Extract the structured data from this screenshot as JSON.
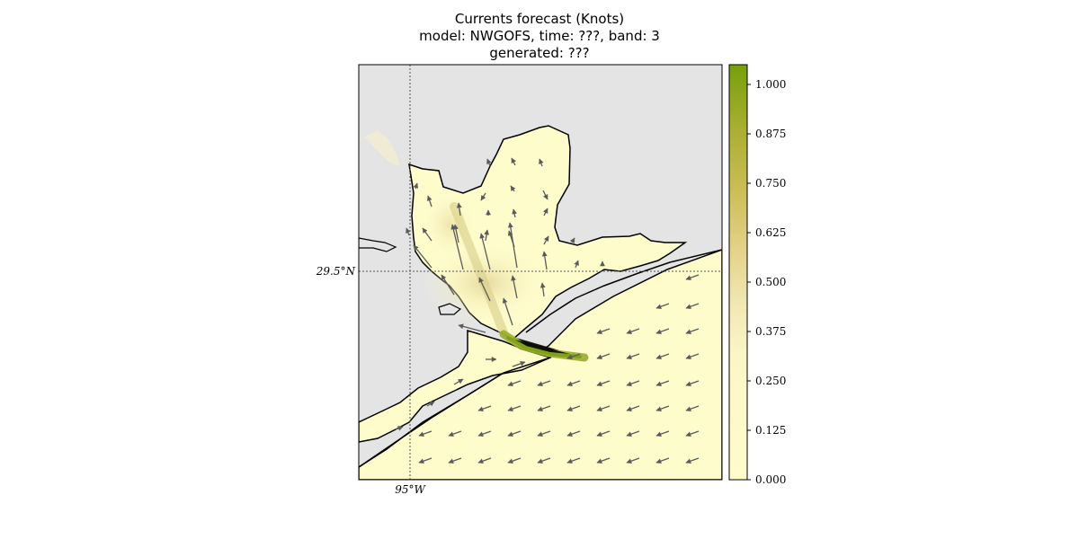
{
  "title": {
    "line1": "Currents forecast (Knots)",
    "line2": "model: NWGOFS, time: ???, band: 3",
    "line3": "generated: ???"
  },
  "map": {
    "lat_label": "29.5°N",
    "lon_label": "95°W",
    "land_color": "#e4e4e4",
    "water_base_color": "#fffccc",
    "coast_color": "#000000",
    "gridline_style": "dotted"
  },
  "colorbar": {
    "ticks": [
      "0.000",
      "0.125",
      "0.250",
      "0.375",
      "0.500",
      "0.625",
      "0.750",
      "0.875",
      "1.000"
    ],
    "min": 0,
    "max": 1.05,
    "color_low": "#fffccc",
    "color_mid": "#e6d98c",
    "color_high": "#76a00a"
  }
}
